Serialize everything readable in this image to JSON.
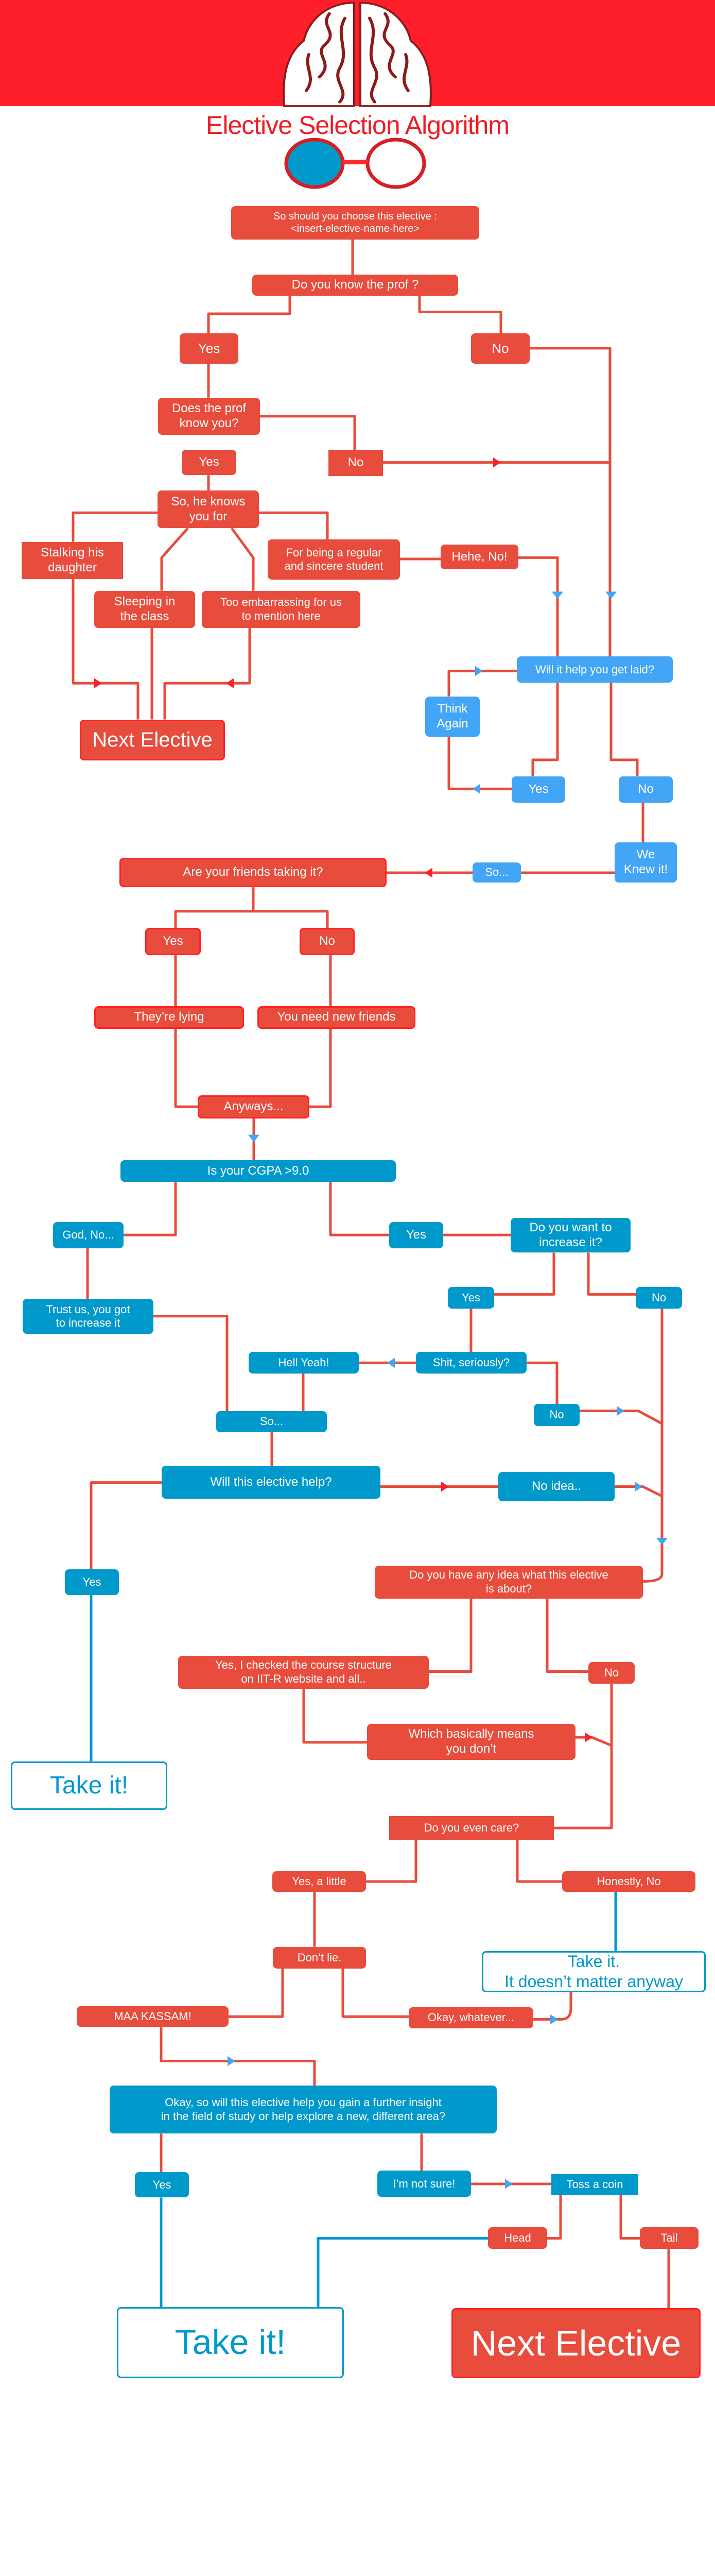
{
  "header": {
    "title": "Elective Selection Algorithm",
    "logo": "brain-icon",
    "glasses": "glasses-icon"
  },
  "colors": {
    "red_box": "#e74c3c",
    "header_red": "#ff1f2a",
    "blue_box": "#0099cc",
    "light_blue_box": "#42a5f5",
    "connector": "#e74c3c"
  },
  "flow": {
    "start": "So should you choose this elective :\n<insert-elective-name-here>",
    "know_prof": "Do you know the prof ?",
    "yes1": "Yes",
    "no1": "No",
    "prof_knows_you": "Does the prof\nknow you?",
    "yes2": "Yes",
    "no2": "No",
    "he_knows_you_for": "So, he knows\nyou for",
    "stalking": "Stalking his\ndaughter",
    "regular": "For being a regular\nand sincere student",
    "sleeping": "Sleeping in\nthe class",
    "embarrassing": "Too embarrassing for us\nto mention here",
    "hehe_no": "Hehe, No!",
    "next_elective_1": "Next Elective",
    "get_laid": "Will it help you get laid?",
    "think_again": "Think\nAgain",
    "yes3": "Yes",
    "no3": "No",
    "we_knew": "We\nKnew it!",
    "so1": "So...",
    "friends": "Are your friends taking it?",
    "yes4": "Yes",
    "no4": "No",
    "lying": "They’re lying",
    "new_friends": "You need new friends",
    "anyways": "Anyways...",
    "cgpa": "Is your CGPA >9.0",
    "god_no": "God, No...",
    "yes5": "Yes",
    "want_increase": "Do you want to\nincrease it?",
    "trust_us": "Trust us, you got\nto increase it",
    "yes6": "Yes",
    "no6": "No",
    "hell_yeah": "Hell Yeah!",
    "seriously": "Shit, seriously?",
    "no7": "No",
    "so2": "So...",
    "elective_help": "Will this elective help?",
    "no_idea": "No idea..",
    "yes8": "Yes",
    "take_it_1": "Take it!",
    "any_idea": "Do you have any idea what this elective\nis about?",
    "checked": "Yes, I checked the course structure\non IIT-R website and all..",
    "no9": "No",
    "basically": "Which basically means\nyou don’t",
    "even_care": "Do you even care?",
    "yes_little": "Yes, a little",
    "honestly_no": "Honestly, No",
    "take_it_2": "Take it.\nIt doesn’t matter anyway",
    "dont_lie": "Don’t lie.",
    "maa_kassam": "MAA KASSAM!",
    "okay_whatever": "Okay, whatever...",
    "insight": "Okay, so will this elective help you gain a further insight\nin the field of study or help explore a new,  different area?",
    "yes10": "Yes",
    "not_sure": "I’m not sure!",
    "toss": "Toss a coin",
    "head": "Head",
    "tail": "Tail",
    "take_it_3": "Take it!",
    "next_elective_2": "Next Elective"
  }
}
